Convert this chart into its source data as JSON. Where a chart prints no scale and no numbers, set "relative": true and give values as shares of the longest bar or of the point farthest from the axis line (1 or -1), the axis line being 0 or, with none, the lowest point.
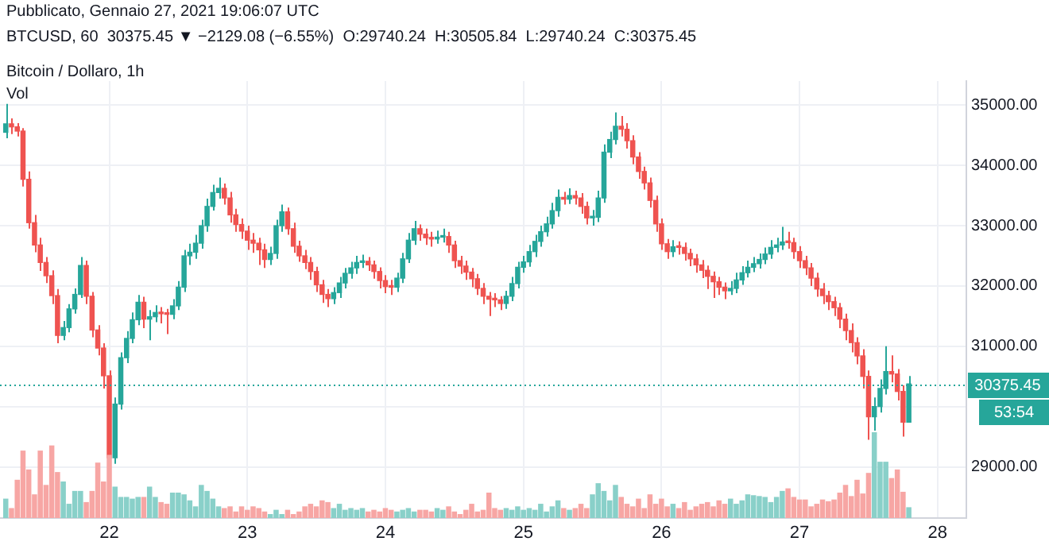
{
  "chart_data": [
    {
      "type": "candlestick",
      "title": "Bitcoin / Dollaro, 1h",
      "subtitle": "BTCUSD, 60  30375.45 ▼ −2129.08 (−6.55%)  O:29740.24  H:30505.84  L:29740.24  C:30375.45",
      "annotations": [
        "Pubblicato, Gennaio 27, 2021 19:06:07 UTC",
        "53:54"
      ],
      "x": [
        "2021-01-21T06:00",
        "2021-01-21T07:00",
        "2021-01-21T08:00",
        "2021-01-21T09:00",
        "2021-01-21T10:00",
        "2021-01-21T11:00",
        "2021-01-21T12:00",
        "2021-01-21T13:00",
        "2021-01-21T14:00",
        "2021-01-21T15:00",
        "2021-01-21T16:00",
        "2021-01-21T17:00",
        "2021-01-21T18:00",
        "2021-01-21T19:00",
        "2021-01-21T20:00",
        "2021-01-21T21:00",
        "2021-01-21T22:00",
        "2021-01-21T23:00",
        "2021-01-22T00:00",
        "2021-01-22T01:00",
        "2021-01-22T02:00",
        "2021-01-22T03:00",
        "2021-01-22T04:00",
        "2021-01-22T05:00",
        "2021-01-22T06:00",
        "2021-01-22T07:00",
        "2021-01-22T08:00",
        "2021-01-22T09:00",
        "2021-01-22T10:00",
        "2021-01-22T11:00",
        "2021-01-22T12:00",
        "2021-01-22T13:00",
        "2021-01-22T14:00",
        "2021-01-22T15:00",
        "2021-01-22T16:00",
        "2021-01-22T17:00",
        "2021-01-22T18:00",
        "2021-01-22T19:00",
        "2021-01-22T20:00",
        "2021-01-22T21:00",
        "2021-01-22T22:00",
        "2021-01-22T23:00",
        "2021-01-23T00:00",
        "2021-01-23T01:00",
        "2021-01-23T02:00",
        "2021-01-23T03:00",
        "2021-01-23T04:00",
        "2021-01-23T05:00",
        "2021-01-23T06:00",
        "2021-01-23T07:00",
        "2021-01-23T08:00",
        "2021-01-23T09:00",
        "2021-01-23T10:00",
        "2021-01-23T11:00",
        "2021-01-23T12:00",
        "2021-01-23T13:00",
        "2021-01-23T14:00",
        "2021-01-23T15:00",
        "2021-01-23T16:00",
        "2021-01-23T17:00",
        "2021-01-23T18:00",
        "2021-01-23T19:00",
        "2021-01-23T20:00",
        "2021-01-23T21:00",
        "2021-01-23T22:00",
        "2021-01-23T23:00",
        "2021-01-24T00:00",
        "2021-01-24T01:00",
        "2021-01-24T02:00",
        "2021-01-24T03:00",
        "2021-01-24T04:00",
        "2021-01-24T05:00",
        "2021-01-24T06:00",
        "2021-01-24T07:00",
        "2021-01-24T08:00",
        "2021-01-24T09:00",
        "2021-01-24T10:00",
        "2021-01-24T11:00",
        "2021-01-24T12:00",
        "2021-01-24T13:00",
        "2021-01-24T14:00",
        "2021-01-24T15:00",
        "2021-01-24T16:00",
        "2021-01-24T17:00",
        "2021-01-24T18:00",
        "2021-01-24T19:00",
        "2021-01-24T20:00",
        "2021-01-24T21:00",
        "2021-01-24T22:00",
        "2021-01-24T23:00",
        "2021-01-25T00:00",
        "2021-01-25T01:00",
        "2021-01-25T02:00",
        "2021-01-25T03:00",
        "2021-01-25T04:00",
        "2021-01-25T05:00",
        "2021-01-25T06:00",
        "2021-01-25T07:00",
        "2021-01-25T08:00",
        "2021-01-25T09:00",
        "2021-01-25T10:00",
        "2021-01-25T11:00",
        "2021-01-25T12:00",
        "2021-01-25T13:00",
        "2021-01-25T14:00",
        "2021-01-25T15:00",
        "2021-01-25T16:00",
        "2021-01-25T17:00",
        "2021-01-25T18:00",
        "2021-01-25T19:00",
        "2021-01-25T20:00",
        "2021-01-25T21:00",
        "2021-01-25T22:00",
        "2021-01-25T23:00",
        "2021-01-26T00:00",
        "2021-01-26T01:00",
        "2021-01-26T02:00",
        "2021-01-26T03:00",
        "2021-01-26T04:00",
        "2021-01-26T05:00",
        "2021-01-26T06:00",
        "2021-01-26T07:00",
        "2021-01-26T08:00",
        "2021-01-26T09:00",
        "2021-01-26T10:00",
        "2021-01-26T11:00",
        "2021-01-26T12:00",
        "2021-01-26T13:00",
        "2021-01-26T14:00",
        "2021-01-26T15:00",
        "2021-01-26T16:00",
        "2021-01-26T17:00",
        "2021-01-26T18:00",
        "2021-01-26T19:00",
        "2021-01-26T20:00",
        "2021-01-26T21:00",
        "2021-01-26T22:00",
        "2021-01-26T23:00",
        "2021-01-27T00:00",
        "2021-01-27T01:00",
        "2021-01-27T02:00",
        "2021-01-27T03:00",
        "2021-01-27T04:00",
        "2021-01-27T05:00",
        "2021-01-27T06:00",
        "2021-01-27T07:00",
        "2021-01-27T08:00",
        "2021-01-27T09:00",
        "2021-01-27T10:00",
        "2021-01-27T11:00",
        "2021-01-27T12:00",
        "2021-01-27T13:00",
        "2021-01-27T14:00",
        "2021-01-27T15:00",
        "2021-01-27T16:00",
        "2021-01-27T17:00",
        "2021-01-27T18:00",
        "2021-01-27T19:00"
      ],
      "ohlc": [
        [
          34550,
          35020,
          34450,
          34690
        ],
        [
          34690,
          34780,
          34520,
          34640
        ],
        [
          34640,
          34700,
          34480,
          34570
        ],
        [
          34570,
          34620,
          33650,
          33770
        ],
        [
          33770,
          33900,
          32950,
          33050
        ],
        [
          33050,
          33180,
          32560,
          32680
        ],
        [
          32680,
          32800,
          32250,
          32390
        ],
        [
          32390,
          32480,
          32050,
          32170
        ],
        [
          32170,
          32260,
          31700,
          31840
        ],
        [
          31840,
          31950,
          31050,
          31180
        ],
        [
          31180,
          31420,
          31100,
          31310
        ],
        [
          31310,
          31700,
          31230,
          31620
        ],
        [
          31620,
          31960,
          31540,
          31860
        ],
        [
          31860,
          32480,
          31800,
          32340
        ],
        [
          32340,
          32420,
          31700,
          31830
        ],
        [
          31830,
          31900,
          31150,
          31270
        ],
        [
          31270,
          31350,
          30850,
          30970
        ],
        [
          30970,
          31050,
          30300,
          30510
        ],
        [
          30510,
          30600,
          28950,
          29150
        ],
        [
          29150,
          30150,
          29050,
          30040
        ],
        [
          30040,
          30900,
          29950,
          30810
        ],
        [
          30810,
          31250,
          30720,
          31130
        ],
        [
          31130,
          31560,
          31050,
          31440
        ],
        [
          31440,
          31850,
          31350,
          31730
        ],
        [
          31730,
          31820,
          31300,
          31450
        ],
        [
          31450,
          31600,
          31100,
          31490
        ],
        [
          31490,
          31680,
          31400,
          31560
        ],
        [
          31560,
          31650,
          31380,
          31540
        ],
        [
          31540,
          31620,
          31200,
          31530
        ],
        [
          31530,
          31780,
          31450,
          31670
        ],
        [
          31670,
          32080,
          31600,
          31980
        ],
        [
          31980,
          32600,
          31900,
          32500
        ],
        [
          32500,
          32700,
          32350,
          32560
        ],
        [
          32560,
          32850,
          32450,
          32710
        ],
        [
          32710,
          33100,
          32620,
          33000
        ],
        [
          33000,
          33450,
          32900,
          33320
        ],
        [
          33320,
          33680,
          33250,
          33550
        ],
        [
          33550,
          33800,
          33450,
          33620
        ],
        [
          33620,
          33700,
          33350,
          33460
        ],
        [
          33460,
          33560,
          33050,
          33180
        ],
        [
          33180,
          33280,
          32900,
          33020
        ],
        [
          33020,
          33120,
          32780,
          32910
        ],
        [
          32910,
          33000,
          32600,
          32760
        ],
        [
          32760,
          32880,
          32550,
          32710
        ],
        [
          32710,
          32800,
          32350,
          32600
        ],
        [
          32600,
          32700,
          32300,
          32440
        ],
        [
          32440,
          32650,
          32350,
          32540
        ],
        [
          32540,
          33100,
          32450,
          33000
        ],
        [
          33000,
          33350,
          32900,
          33230
        ],
        [
          33230,
          33300,
          32850,
          32950
        ],
        [
          32950,
          33050,
          32550,
          32660
        ],
        [
          32660,
          32750,
          32400,
          32500
        ],
        [
          32500,
          32600,
          32280,
          32390
        ],
        [
          32390,
          32480,
          32100,
          32240
        ],
        [
          32240,
          32320,
          31900,
          32020
        ],
        [
          32020,
          32100,
          31720,
          31860
        ],
        [
          31860,
          31950,
          31650,
          31790
        ],
        [
          31790,
          31980,
          31700,
          31890
        ],
        [
          31890,
          32150,
          31800,
          32050
        ],
        [
          32050,
          32300,
          31960,
          32210
        ],
        [
          32210,
          32400,
          32120,
          32300
        ],
        [
          32300,
          32500,
          32200,
          32390
        ],
        [
          32390,
          32520,
          32300,
          32410
        ],
        [
          32410,
          32480,
          32250,
          32350
        ],
        [
          32350,
          32420,
          32120,
          32240
        ],
        [
          32240,
          32310,
          31960,
          32090
        ],
        [
          32090,
          32180,
          31880,
          31990
        ],
        [
          31990,
          32100,
          31850,
          31980
        ],
        [
          31980,
          32220,
          31900,
          32130
        ],
        [
          32130,
          32550,
          32050,
          32450
        ],
        [
          32450,
          32880,
          32380,
          32760
        ],
        [
          32760,
          33080,
          32680,
          32950
        ],
        [
          32950,
          33020,
          32750,
          32860
        ],
        [
          32860,
          32950,
          32680,
          32800
        ],
        [
          32800,
          32900,
          32650,
          32780
        ],
        [
          32780,
          32920,
          32700,
          32810
        ],
        [
          32810,
          32950,
          32720,
          32820
        ],
        [
          32820,
          32900,
          32550,
          32680
        ],
        [
          32680,
          32750,
          32300,
          32420
        ],
        [
          32420,
          32500,
          32200,
          32330
        ],
        [
          32330,
          32420,
          32100,
          32230
        ],
        [
          32230,
          32300,
          31980,
          32120
        ],
        [
          32120,
          32200,
          31850,
          31960
        ],
        [
          31960,
          32050,
          31700,
          31830
        ],
        [
          31830,
          31900,
          31500,
          31780
        ],
        [
          31780,
          31880,
          31650,
          31770
        ],
        [
          31770,
          31830,
          31600,
          31710
        ],
        [
          31710,
          31920,
          31620,
          31830
        ],
        [
          31830,
          32150,
          31750,
          32040
        ],
        [
          32040,
          32400,
          31960,
          32310
        ],
        [
          32310,
          32500,
          32220,
          32400
        ],
        [
          32400,
          32680,
          32320,
          32570
        ],
        [
          32570,
          32850,
          32480,
          32740
        ],
        [
          32740,
          33000,
          32650,
          32900
        ],
        [
          32900,
          33150,
          32820,
          33030
        ],
        [
          33030,
          33380,
          32950,
          33250
        ],
        [
          33250,
          33600,
          33150,
          33470
        ],
        [
          33470,
          33560,
          33350,
          33440
        ],
        [
          33440,
          33620,
          33360,
          33500
        ],
        [
          33500,
          33580,
          33350,
          33460
        ],
        [
          33460,
          33540,
          33200,
          33320
        ],
        [
          33320,
          33400,
          33020,
          33130
        ],
        [
          33130,
          33260,
          33000,
          33140
        ],
        [
          33140,
          33580,
          33060,
          33460
        ],
        [
          33460,
          34350,
          33380,
          34220
        ],
        [
          34220,
          34560,
          34120,
          34430
        ],
        [
          34430,
          34880,
          34350,
          34650
        ],
        [
          34650,
          34820,
          34480,
          34600
        ],
        [
          34600,
          34700,
          34280,
          34410
        ],
        [
          34410,
          34500,
          34020,
          34140
        ],
        [
          34140,
          34220,
          33780,
          33900
        ],
        [
          33900,
          33980,
          33600,
          33710
        ],
        [
          33710,
          33800,
          33300,
          33420
        ],
        [
          33420,
          33500,
          32900,
          33030
        ],
        [
          33030,
          33120,
          32600,
          32700
        ],
        [
          32700,
          32780,
          32450,
          32570
        ],
        [
          32570,
          32760,
          32480,
          32650
        ],
        [
          32650,
          32740,
          32520,
          32640
        ],
        [
          32640,
          32720,
          32420,
          32540
        ],
        [
          32540,
          32620,
          32330,
          32450
        ],
        [
          32450,
          32530,
          32220,
          32350
        ],
        [
          32350,
          32430,
          32130,
          32260
        ],
        [
          32260,
          32340,
          31950,
          32160
        ],
        [
          32160,
          32240,
          31800,
          32070
        ],
        [
          32070,
          32150,
          31850,
          31980
        ],
        [
          31980,
          32060,
          31780,
          31920
        ],
        [
          31920,
          32080,
          31850,
          31960
        ],
        [
          31960,
          32220,
          31880,
          32100
        ],
        [
          32100,
          32330,
          32020,
          32220
        ],
        [
          32220,
          32420,
          32140,
          32310
        ],
        [
          32310,
          32480,
          32230,
          32370
        ],
        [
          32370,
          32540,
          32290,
          32440
        ],
        [
          32440,
          32640,
          32360,
          32530
        ],
        [
          32530,
          32760,
          32450,
          32640
        ],
        [
          32640,
          32800,
          32560,
          32680
        ],
        [
          32680,
          32980,
          32600,
          32730
        ],
        [
          32730,
          32900,
          32620,
          32720
        ],
        [
          32720,
          32800,
          32450,
          32570
        ],
        [
          32570,
          32660,
          32300,
          32420
        ],
        [
          32420,
          32500,
          32180,
          32300
        ],
        [
          32300,
          32380,
          32000,
          32130
        ],
        [
          32130,
          32220,
          31820,
          31950
        ],
        [
          31950,
          32050,
          31700,
          31840
        ],
        [
          31840,
          31920,
          31600,
          31740
        ],
        [
          31740,
          31820,
          31500,
          31640
        ],
        [
          31640,
          31720,
          31300,
          31450
        ],
        [
          31450,
          31540,
          31100,
          31260
        ],
        [
          31260,
          31380,
          30900,
          31060
        ],
        [
          31060,
          31150,
          30700,
          30840
        ],
        [
          30840,
          30950,
          30300,
          30500
        ],
        [
          30500,
          30600,
          29450,
          29830
        ],
        [
          29830,
          30150,
          29600,
          30000
        ],
        [
          30000,
          30450,
          29900,
          30300
        ],
        [
          30300,
          31000,
          30200,
          30580
        ],
        [
          30580,
          30850,
          30400,
          30540
        ],
        [
          30540,
          30620,
          30100,
          30250
        ],
        [
          30250,
          30350,
          29500,
          29740.24
        ],
        [
          29740.24,
          30505.84,
          29740.24,
          30375.45
        ]
      ],
      "colors": [
        "#26a69a",
        "#ef5350",
        "#ef5350",
        "#ef5350",
        "#ef5350",
        "#ef5350",
        "#ef5350",
        "#ef5350",
        "#ef5350",
        "#ef5350",
        "#26a69a",
        "#26a69a",
        "#26a69a",
        "#26a69a",
        "#ef5350",
        "#ef5350",
        "#ef5350",
        "#ef5350",
        "#ef5350",
        "#26a69a",
        "#26a69a",
        "#26a69a",
        "#26a69a",
        "#26a69a",
        "#ef5350",
        "#26a69a",
        "#26a69a",
        "#ef5350",
        "#ef5350",
        "#26a69a",
        "#26a69a",
        "#26a69a",
        "#26a69a",
        "#26a69a",
        "#26a69a",
        "#26a69a",
        "#26a69a",
        "#26a69a",
        "#ef5350",
        "#ef5350",
        "#ef5350",
        "#ef5350",
        "#ef5350",
        "#ef5350",
        "#ef5350",
        "#ef5350",
        "#26a69a",
        "#26a69a",
        "#26a69a",
        "#ef5350",
        "#ef5350",
        "#ef5350",
        "#ef5350",
        "#ef5350",
        "#ef5350",
        "#ef5350",
        "#ef5350",
        "#26a69a",
        "#26a69a",
        "#26a69a",
        "#26a69a",
        "#26a69a",
        "#26a69a",
        "#ef5350",
        "#ef5350",
        "#ef5350",
        "#ef5350",
        "#ef5350",
        "#26a69a",
        "#26a69a",
        "#26a69a",
        "#26a69a",
        "#ef5350",
        "#ef5350",
        "#ef5350",
        "#26a69a",
        "#26a69a",
        "#ef5350",
        "#ef5350",
        "#ef5350",
        "#ef5350",
        "#ef5350",
        "#ef5350",
        "#ef5350",
        "#ef5350",
        "#ef5350",
        "#ef5350",
        "#26a69a",
        "#26a69a",
        "#26a69a",
        "#26a69a",
        "#26a69a",
        "#26a69a",
        "#26a69a",
        "#26a69a",
        "#26a69a",
        "#26a69a",
        "#ef5350",
        "#26a69a",
        "#ef5350",
        "#ef5350",
        "#ef5350",
        "#26a69a",
        "#26a69a",
        "#26a69a",
        "#26a69a",
        "#26a69a",
        "#ef5350",
        "#ef5350",
        "#ef5350",
        "#ef5350",
        "#ef5350",
        "#ef5350",
        "#ef5350",
        "#ef5350",
        "#ef5350",
        "#26a69a",
        "#ef5350",
        "#ef5350",
        "#ef5350",
        "#ef5350",
        "#ef5350",
        "#ef5350",
        "#ef5350",
        "#ef5350",
        "#ef5350",
        "#26a69a",
        "#26a69a",
        "#26a69a",
        "#26a69a",
        "#26a69a",
        "#26a69a",
        "#26a69a",
        "#26a69a",
        "#26a69a",
        "#26a69a",
        "#ef5350",
        "#ef5350",
        "#ef5350",
        "#ef5350",
        "#ef5350",
        "#ef5350",
        "#ef5350",
        "#ef5350",
        "#ef5350",
        "#ef5350",
        "#ef5350",
        "#ef5350",
        "#ef5350",
        "#ef5350",
        "#ef5350",
        "#26a69a",
        "#26a69a",
        "#26a69a",
        "#ef5350",
        "#ef5350",
        "#ef5350",
        "#26a69a"
      ],
      "xlim": [
        "2021-01-21T05:00",
        "2021-01-28T05:00"
      ],
      "xticks": [
        {
          "value": "2021-01-22",
          "label": "22"
        },
        {
          "value": "2021-01-23",
          "label": "23"
        },
        {
          "value": "2021-01-24",
          "label": "24"
        },
        {
          "value": "2021-01-25",
          "label": "25"
        },
        {
          "value": "2021-01-26",
          "label": "26"
        },
        {
          "value": "2021-01-27",
          "label": "27"
        },
        {
          "value": "2021-01-28",
          "label": "28"
        }
      ],
      "ylim": [
        28150,
        35400
      ],
      "yticks": [
        {
          "value": 29000,
          "label": "29000.00"
        },
        {
          "value": 30000,
          "label": null
        },
        {
          "value": 31000,
          "label": "31000.00"
        },
        {
          "value": 32000,
          "label": "32000.00"
        },
        {
          "value": 33000,
          "label": "33000.00"
        },
        {
          "value": 34000,
          "label": "34000.00"
        },
        {
          "value": 35000,
          "label": "35000.00"
        }
      ],
      "grid": true,
      "ref_lines": [
        {
          "axis": "y",
          "value": 30375.45,
          "label": "30375.45",
          "color": "#26a69a",
          "line_style": "dotted"
        }
      ]
    },
    {
      "type": "bar",
      "title": "Vol",
      "relative": true,
      "tick_labels": false,
      "xlim": [
        "2021-01-21T05:00",
        "2021-01-28T05:00"
      ],
      "x": [
        "2021-01-21T06:00",
        "2021-01-21T07:00",
        "2021-01-21T08:00",
        "2021-01-21T09:00",
        "2021-01-21T10:00",
        "2021-01-21T11:00",
        "2021-01-21T12:00",
        "2021-01-21T13:00",
        "2021-01-21T14:00",
        "2021-01-21T15:00",
        "2021-01-21T16:00",
        "2021-01-21T17:00",
        "2021-01-21T18:00",
        "2021-01-21T19:00",
        "2021-01-21T20:00",
        "2021-01-21T21:00",
        "2021-01-21T22:00",
        "2021-01-21T23:00",
        "2021-01-22T00:00",
        "2021-01-22T01:00",
        "2021-01-22T02:00",
        "2021-01-22T03:00",
        "2021-01-22T04:00",
        "2021-01-22T05:00",
        "2021-01-22T06:00",
        "2021-01-22T07:00",
        "2021-01-22T08:00",
        "2021-01-22T09:00",
        "2021-01-22T10:00",
        "2021-01-22T11:00",
        "2021-01-22T12:00",
        "2021-01-22T13:00",
        "2021-01-22T14:00",
        "2021-01-22T15:00",
        "2021-01-22T16:00",
        "2021-01-22T17:00",
        "2021-01-22T18:00",
        "2021-01-22T19:00",
        "2021-01-22T20:00",
        "2021-01-22T21:00",
        "2021-01-22T22:00",
        "2021-01-22T23:00",
        "2021-01-23T00:00",
        "2021-01-23T01:00",
        "2021-01-23T02:00",
        "2021-01-23T03:00",
        "2021-01-23T04:00",
        "2021-01-23T05:00",
        "2021-01-23T06:00",
        "2021-01-23T07:00",
        "2021-01-23T08:00",
        "2021-01-23T09:00",
        "2021-01-23T10:00",
        "2021-01-23T11:00",
        "2021-01-23T12:00",
        "2021-01-23T13:00",
        "2021-01-23T14:00",
        "2021-01-23T15:00",
        "2021-01-23T16:00",
        "2021-01-23T17:00",
        "2021-01-23T18:00",
        "2021-01-23T19:00",
        "2021-01-23T20:00",
        "2021-01-23T21:00",
        "2021-01-23T22:00",
        "2021-01-23T23:00",
        "2021-01-24T00:00",
        "2021-01-24T01:00",
        "2021-01-24T02:00",
        "2021-01-24T03:00",
        "2021-01-24T04:00",
        "2021-01-24T05:00",
        "2021-01-24T06:00",
        "2021-01-24T07:00",
        "2021-01-24T08:00",
        "2021-01-24T09:00",
        "2021-01-24T10:00",
        "2021-01-24T11:00",
        "2021-01-24T12:00",
        "2021-01-24T13:00",
        "2021-01-24T14:00",
        "2021-01-24T15:00",
        "2021-01-24T16:00",
        "2021-01-24T17:00",
        "2021-01-24T18:00",
        "2021-01-24T19:00",
        "2021-01-24T20:00",
        "2021-01-24T21:00",
        "2021-01-24T22:00",
        "2021-01-24T23:00",
        "2021-01-25T00:00",
        "2021-01-25T01:00",
        "2021-01-25T02:00",
        "2021-01-25T03:00",
        "2021-01-25T04:00",
        "2021-01-25T05:00",
        "2021-01-25T06:00",
        "2021-01-25T07:00",
        "2021-01-25T08:00",
        "2021-01-25T09:00",
        "2021-01-25T10:00",
        "2021-01-25T11:00",
        "2021-01-25T12:00",
        "2021-01-25T13:00",
        "2021-01-25T14:00",
        "2021-01-25T15:00",
        "2021-01-25T16:00",
        "2021-01-25T17:00",
        "2021-01-25T18:00",
        "2021-01-25T19:00",
        "2021-01-25T20:00",
        "2021-01-25T21:00",
        "2021-01-25T22:00",
        "2021-01-25T23:00",
        "2021-01-26T00:00",
        "2021-01-26T01:00",
        "2021-01-26T02:00",
        "2021-01-26T03:00",
        "2021-01-26T04:00",
        "2021-01-26T05:00",
        "2021-01-26T06:00",
        "2021-01-26T07:00",
        "2021-01-26T08:00",
        "2021-01-26T09:00",
        "2021-01-26T10:00",
        "2021-01-26T11:00",
        "2021-01-26T12:00",
        "2021-01-26T13:00",
        "2021-01-26T14:00",
        "2021-01-26T15:00",
        "2021-01-26T16:00",
        "2021-01-26T17:00",
        "2021-01-26T18:00",
        "2021-01-26T19:00",
        "2021-01-26T20:00",
        "2021-01-26T21:00",
        "2021-01-26T22:00",
        "2021-01-26T23:00",
        "2021-01-27T00:00",
        "2021-01-27T01:00",
        "2021-01-27T02:00",
        "2021-01-27T03:00",
        "2021-01-27T04:00",
        "2021-01-27T05:00",
        "2021-01-27T06:00",
        "2021-01-27T07:00",
        "2021-01-27T08:00",
        "2021-01-27T09:00",
        "2021-01-27T10:00",
        "2021-01-27T11:00",
        "2021-01-27T12:00",
        "2021-01-27T13:00",
        "2021-01-27T14:00",
        "2021-01-27T15:00",
        "2021-01-27T16:00",
        "2021-01-27T17:00",
        "2021-01-27T18:00",
        "2021-01-27T19:00"
      ],
      "values": [
        0.22,
        0.11,
        0.44,
        0.78,
        0.56,
        0.27,
        0.78,
        0.38,
        0.84,
        0.53,
        0.42,
        0.16,
        0.31,
        0.31,
        0.18,
        0.31,
        0.64,
        0.42,
        0.73,
        0.36,
        0.24,
        0.24,
        0.22,
        0.24,
        0.24,
        0.36,
        0.24,
        0.18,
        0.16,
        0.29,
        0.29,
        0.27,
        0.2,
        0.13,
        0.38,
        0.31,
        0.22,
        0.13,
        0.11,
        0.13,
        0.07,
        0.13,
        0.09,
        0.13,
        0.11,
        0.07,
        0.04,
        0.09,
        0.04,
        0.09,
        0.04,
        0.07,
        0.13,
        0.16,
        0.13,
        0.2,
        0.18,
        0.11,
        0.16,
        0.09,
        0.11,
        0.09,
        0.11,
        0.07,
        0.09,
        0.07,
        0.11,
        0.09,
        0.07,
        0.09,
        0.11,
        0.07,
        0.09,
        0.09,
        0.07,
        0.11,
        0.09,
        0.13,
        0.07,
        0.04,
        0.09,
        0.16,
        0.07,
        0.09,
        0.29,
        0.11,
        0.09,
        0.11,
        0.09,
        0.13,
        0.09,
        0.11,
        0.09,
        0.16,
        0.07,
        0.13,
        0.2,
        0.11,
        0.09,
        0.11,
        0.16,
        0.11,
        0.27,
        0.4,
        0.31,
        0.2,
        0.38,
        0.24,
        0.16,
        0.13,
        0.22,
        0.11,
        0.27,
        0.16,
        0.22,
        0.13,
        0.16,
        0.11,
        0.18,
        0.09,
        0.13,
        0.16,
        0.18,
        0.13,
        0.2,
        0.16,
        0.22,
        0.16,
        0.2,
        0.27,
        0.26,
        0.25,
        0.24,
        0.18,
        0.24,
        0.31,
        0.34,
        0.24,
        0.21,
        0.21,
        0.13,
        0.16,
        0.21,
        0.19,
        0.21,
        0.29,
        0.38,
        0.25,
        0.44,
        0.28,
        0.52,
        1,
        0.65,
        0.65,
        0.46,
        0.56,
        0.3,
        0.12
      ],
      "colors": [
        "#89d0c9",
        "#f7a6a4",
        "#f7a6a4",
        "#f7a6a4",
        "#f7a6a4",
        "#f7a6a4",
        "#f7a6a4",
        "#f7a6a4",
        "#f7a6a4",
        "#f7a6a4",
        "#89d0c9",
        "#89d0c9",
        "#89d0c9",
        "#89d0c9",
        "#f7a6a4",
        "#f7a6a4",
        "#f7a6a4",
        "#f7a6a4",
        "#f7a6a4",
        "#89d0c9",
        "#89d0c9",
        "#89d0c9",
        "#89d0c9",
        "#89d0c9",
        "#f7a6a4",
        "#89d0c9",
        "#89d0c9",
        "#f7a6a4",
        "#f7a6a4",
        "#89d0c9",
        "#89d0c9",
        "#89d0c9",
        "#89d0c9",
        "#89d0c9",
        "#89d0c9",
        "#89d0c9",
        "#89d0c9",
        "#89d0c9",
        "#f7a6a4",
        "#f7a6a4",
        "#f7a6a4",
        "#f7a6a4",
        "#f7a6a4",
        "#f7a6a4",
        "#f7a6a4",
        "#f7a6a4",
        "#89d0c9",
        "#89d0c9",
        "#89d0c9",
        "#f7a6a4",
        "#f7a6a4",
        "#f7a6a4",
        "#f7a6a4",
        "#f7a6a4",
        "#f7a6a4",
        "#f7a6a4",
        "#f7a6a4",
        "#89d0c9",
        "#89d0c9",
        "#89d0c9",
        "#89d0c9",
        "#89d0c9",
        "#89d0c9",
        "#f7a6a4",
        "#f7a6a4",
        "#f7a6a4",
        "#f7a6a4",
        "#f7a6a4",
        "#89d0c9",
        "#89d0c9",
        "#89d0c9",
        "#89d0c9",
        "#f7a6a4",
        "#f7a6a4",
        "#f7a6a4",
        "#89d0c9",
        "#89d0c9",
        "#f7a6a4",
        "#f7a6a4",
        "#f7a6a4",
        "#f7a6a4",
        "#f7a6a4",
        "#f7a6a4",
        "#f7a6a4",
        "#f7a6a4",
        "#f7a6a4",
        "#f7a6a4",
        "#89d0c9",
        "#89d0c9",
        "#89d0c9",
        "#89d0c9",
        "#89d0c9",
        "#89d0c9",
        "#89d0c9",
        "#89d0c9",
        "#89d0c9",
        "#89d0c9",
        "#f7a6a4",
        "#89d0c9",
        "#f7a6a4",
        "#f7a6a4",
        "#f7a6a4",
        "#89d0c9",
        "#89d0c9",
        "#89d0c9",
        "#89d0c9",
        "#89d0c9",
        "#f7a6a4",
        "#f7a6a4",
        "#f7a6a4",
        "#f7a6a4",
        "#f7a6a4",
        "#f7a6a4",
        "#f7a6a4",
        "#f7a6a4",
        "#f7a6a4",
        "#89d0c9",
        "#f7a6a4",
        "#f7a6a4",
        "#f7a6a4",
        "#f7a6a4",
        "#f7a6a4",
        "#f7a6a4",
        "#f7a6a4",
        "#f7a6a4",
        "#f7a6a4",
        "#89d0c9",
        "#89d0c9",
        "#89d0c9",
        "#89d0c9",
        "#89d0c9",
        "#89d0c9",
        "#89d0c9",
        "#89d0c9",
        "#89d0c9",
        "#89d0c9",
        "#f7a6a4",
        "#f7a6a4",
        "#f7a6a4",
        "#f7a6a4",
        "#f7a6a4",
        "#f7a6a4",
        "#f7a6a4",
        "#f7a6a4",
        "#f7a6a4",
        "#f7a6a4",
        "#f7a6a4",
        "#f7a6a4",
        "#f7a6a4",
        "#f7a6a4",
        "#f7a6a4",
        "#89d0c9",
        "#89d0c9",
        "#89d0c9",
        "#f7a6a4",
        "#f7a6a4",
        "#f7a6a4",
        "#89d0c9"
      ]
    }
  ]
}
